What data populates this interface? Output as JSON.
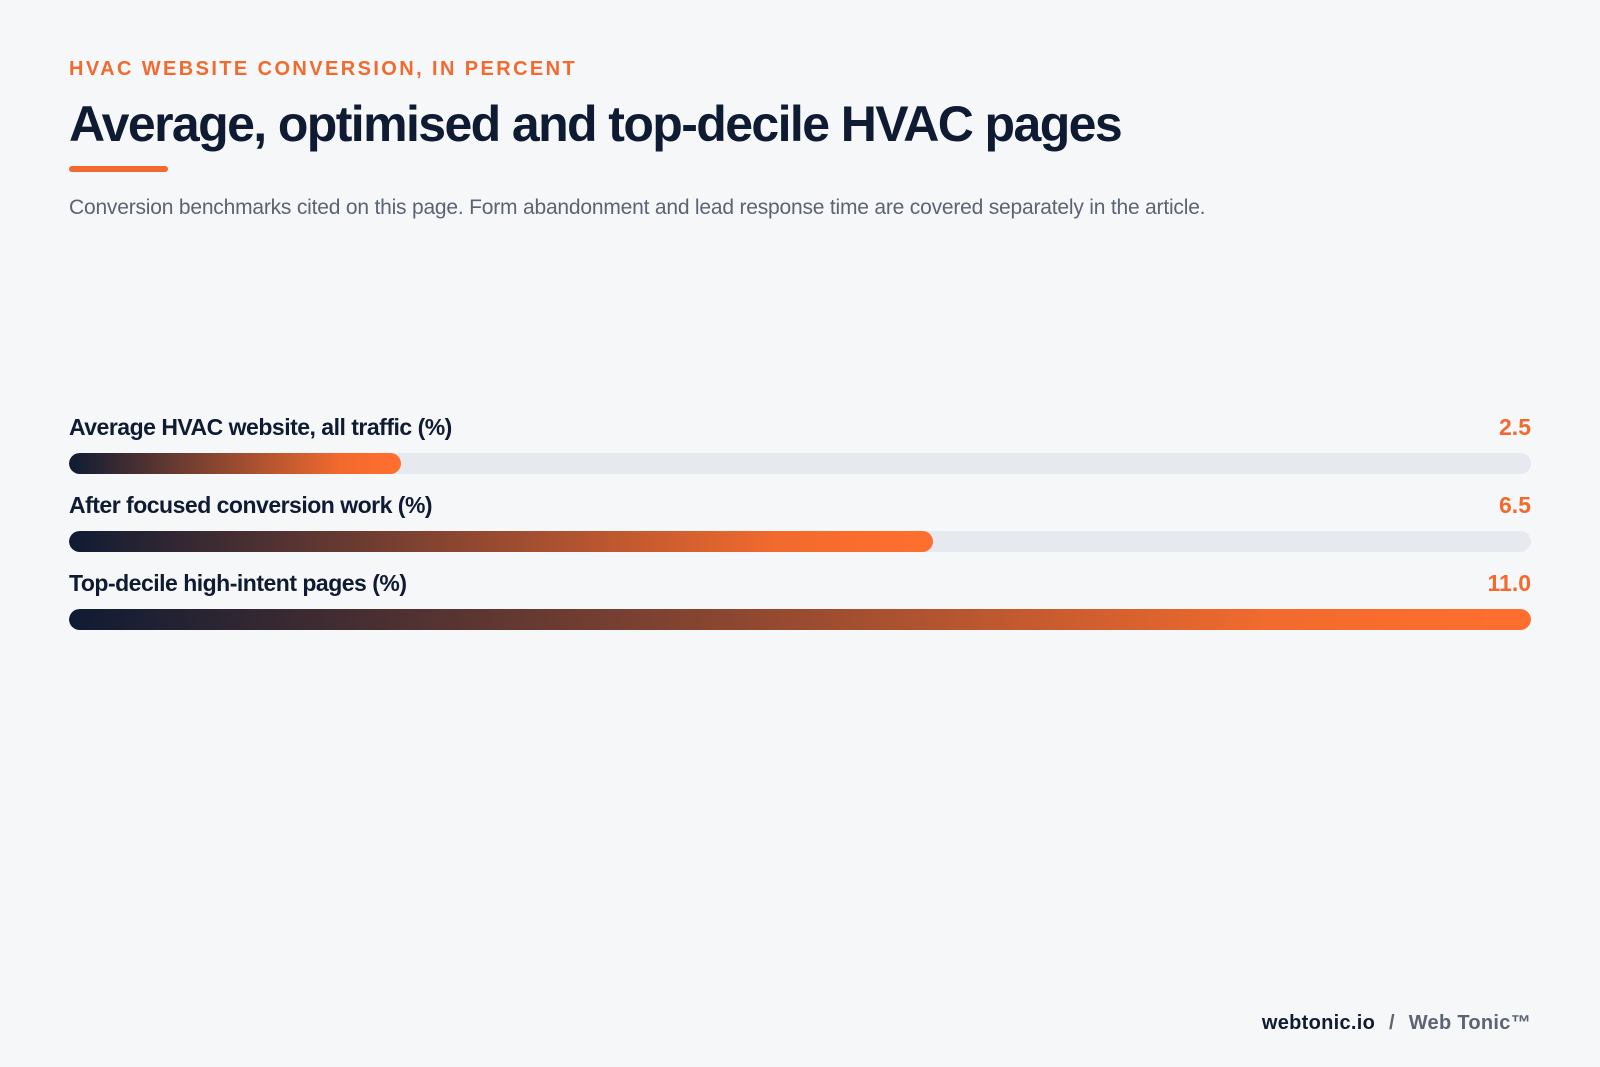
{
  "header": {
    "eyebrow": "HVAC WEBSITE CONVERSION, IN PERCENT",
    "title": "Average, optimised and top-decile HVAC pages",
    "subtitle": "Conversion benchmarks cited on this page. Form abandonment and lead response time are covered separately in the article."
  },
  "footer": {
    "domain": "webtonic.io",
    "separator": "/",
    "brand": "Web Tonic™"
  },
  "colors": {
    "accent": "#f26a2e",
    "navy": "#0f1b33",
    "track": "#e6e9ed",
    "background": "#f6f7f9"
  },
  "chart_data": {
    "type": "bar",
    "orientation": "horizontal",
    "categories": [
      "Average HVAC website, all traffic (%)",
      "After focused conversion work (%)",
      "Top-decile high-intent pages (%)"
    ],
    "values": [
      2.5,
      6.5,
      11.0
    ],
    "value_labels": [
      "2.5",
      "6.5",
      "11.0"
    ],
    "xlim": [
      0,
      11.0
    ],
    "grid": false,
    "legend": "none"
  }
}
